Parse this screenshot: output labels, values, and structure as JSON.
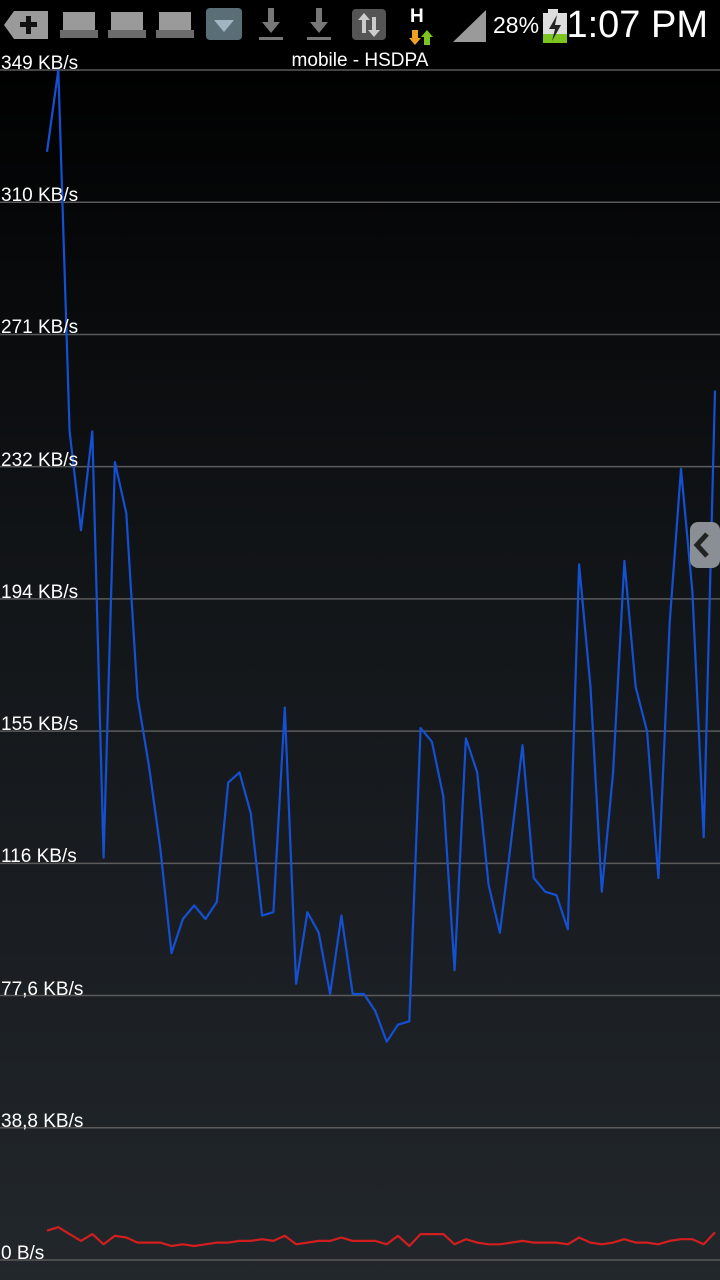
{
  "status_bar": {
    "network_type": "H",
    "battery_percent": "28%",
    "time": "1:07 PM",
    "icons": [
      "add-icon",
      "sd-card-icon",
      "sd-card-icon",
      "sd-card-icon",
      "download-box-icon",
      "download-icon",
      "download-icon",
      "sync-icon",
      "hsdpa-data-icon",
      "signal-icon",
      "battery-charging-icon"
    ]
  },
  "chart_data": {
    "type": "line",
    "title": "mobile - HSDPA",
    "y_ticks": [
      "349 KB/s",
      "310 KB/s",
      "271 KB/s",
      "232 KB/s",
      "194 KB/s",
      "155 KB/s",
      "116 KB/s",
      "77,6 KB/s",
      "38,8 KB/s",
      "0 B/s"
    ],
    "ylim": [
      0,
      349
    ],
    "series": [
      {
        "color": "#1450d2",
        "values": [
          325,
          349,
          243,
          214,
          243,
          118,
          234,
          219,
          165,
          145,
          121,
          90,
          100,
          104,
          100,
          105,
          140,
          143,
          131,
          101,
          102,
          162,
          81,
          102,
          96,
          78,
          101,
          78,
          78,
          73,
          64,
          69,
          70,
          156,
          152,
          136,
          85,
          153,
          143,
          110,
          96,
          123,
          151,
          112,
          108,
          107,
          97,
          204,
          168,
          108,
          143,
          205,
          168,
          155,
          112,
          187,
          232,
          196,
          124,
          255
        ],
        "x_count": 60
      },
      {
        "color": "#d21e1e",
        "values": [
          4.5,
          5.5,
          3.5,
          1.5,
          3.5,
          0.5,
          3,
          2.5,
          1,
          1,
          1,
          0,
          0.5,
          0,
          0.5,
          1,
          1,
          1.5,
          1.5,
          2,
          1.5,
          3,
          0.5,
          1,
          1.5,
          1.5,
          2.5,
          1.5,
          1.5,
          1.5,
          0.5,
          3,
          0,
          3.5,
          3.5,
          3.5,
          0.5,
          2,
          1,
          0.5,
          0.5,
          1,
          1.5,
          1,
          1,
          1,
          0.5,
          2.5,
          1,
          0.5,
          1,
          2,
          1,
          1,
          0.5,
          1.5,
          2,
          2,
          0.5,
          4
        ],
        "x_count": 60
      }
    ],
    "grid": true,
    "legend": "none"
  }
}
